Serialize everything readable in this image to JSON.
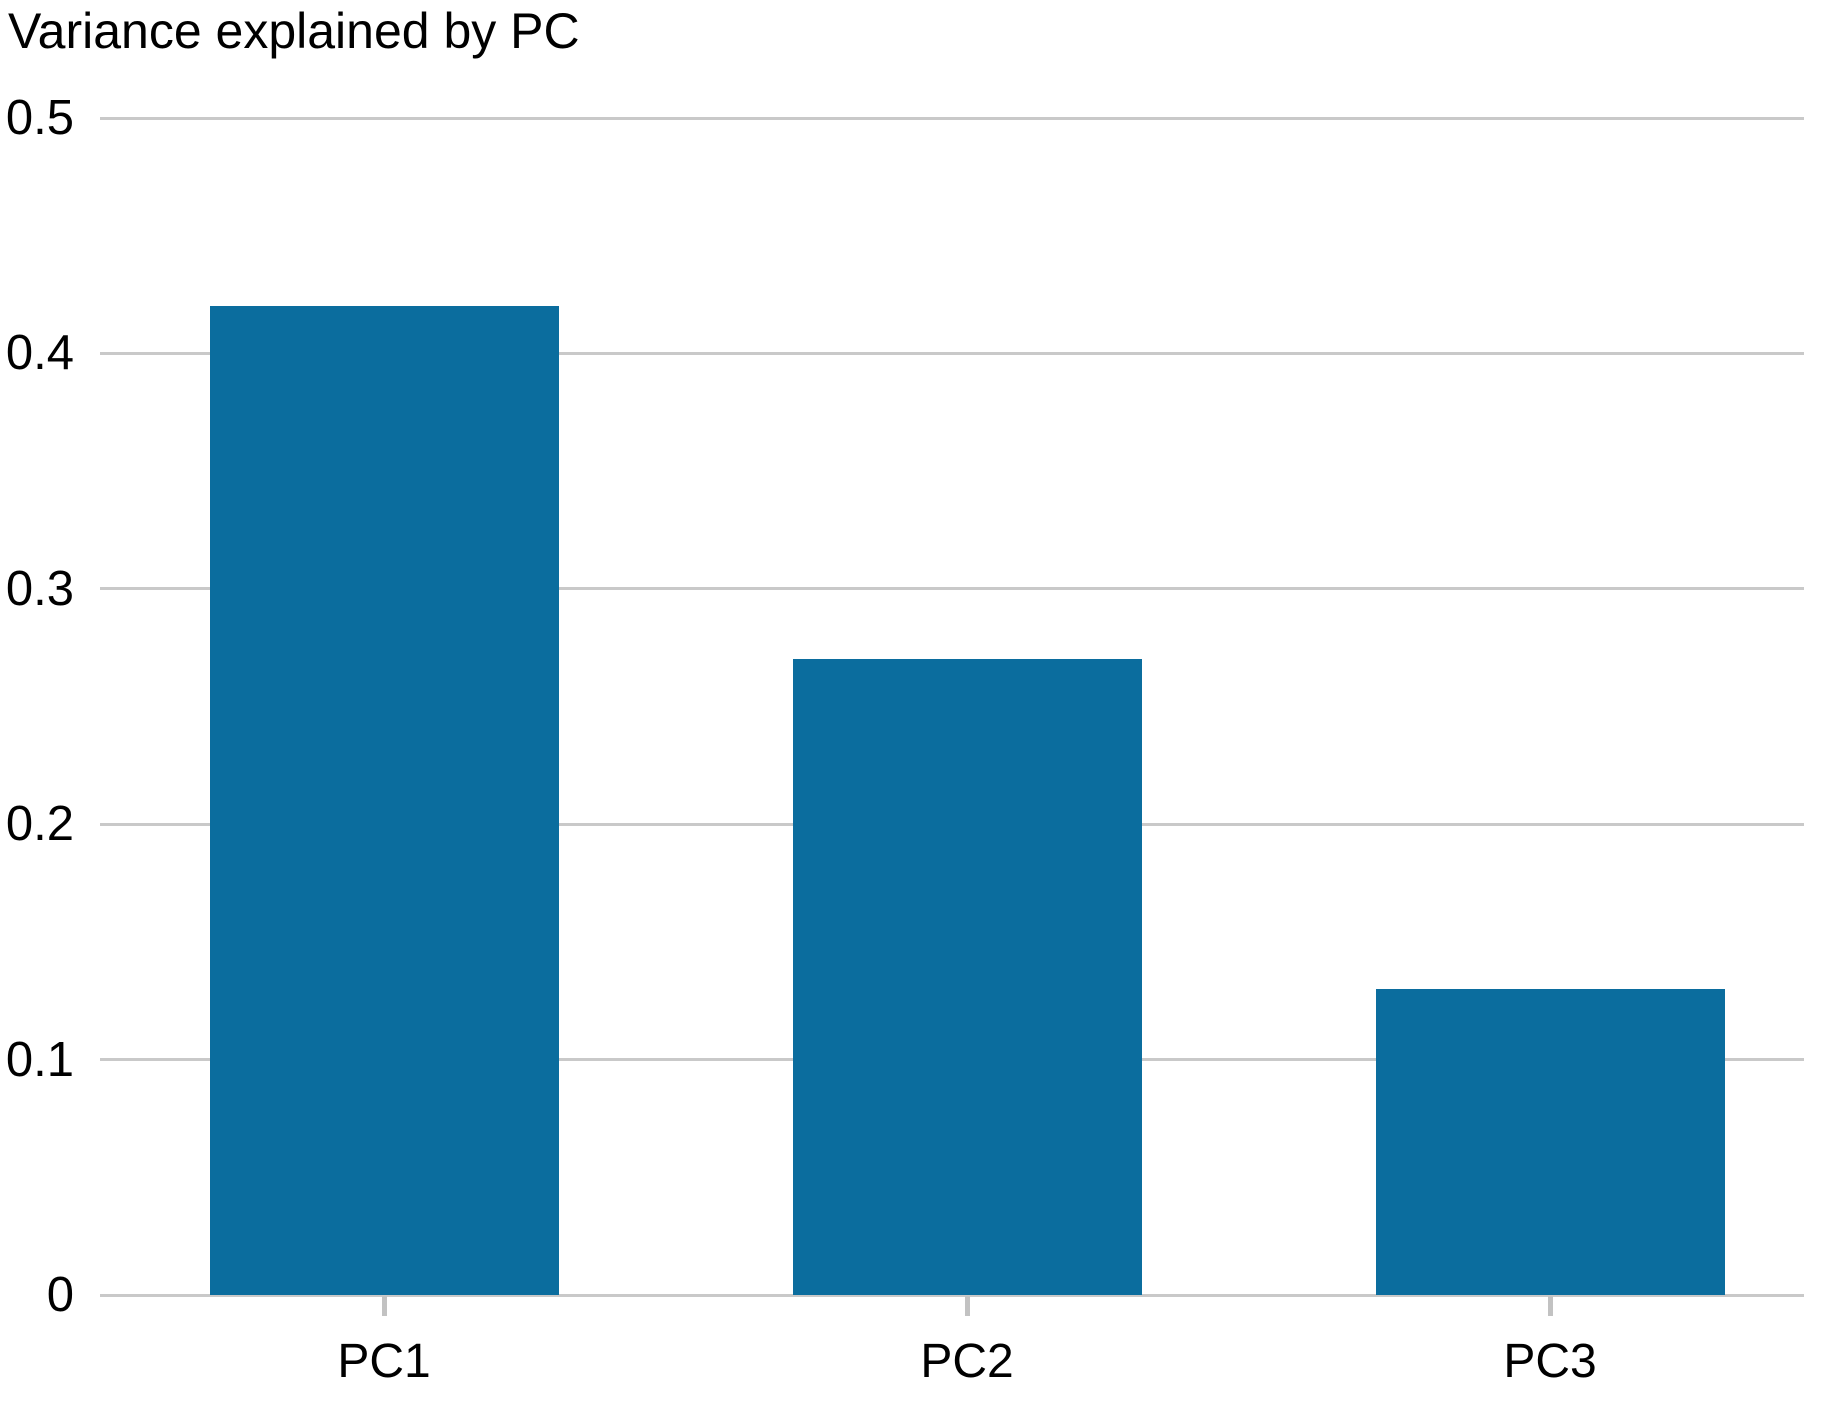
{
  "chart_data": {
    "type": "bar",
    "title": "Variance explained by PC",
    "categories": [
      "PC1",
      "PC2",
      "PC3"
    ],
    "values": [
      0.42,
      0.27,
      0.13
    ],
    "xlabel": "",
    "ylabel": "",
    "ylim": [
      0,
      0.5
    ],
    "yticks": [
      0,
      0.1,
      0.2,
      0.3,
      0.4,
      0.5
    ],
    "ytick_labels": [
      "0",
      "0.1",
      "0.2",
      "0.3",
      "0.4",
      "0.5"
    ],
    "grid": "horizontal gridlines on",
    "legend": "none",
    "colors": {
      "bar": "#0b6d9e",
      "gridline": "#c9c9c9",
      "axis_tick": "#c2c2c2",
      "text": "#000000",
      "background": "#ffffff"
    }
  }
}
